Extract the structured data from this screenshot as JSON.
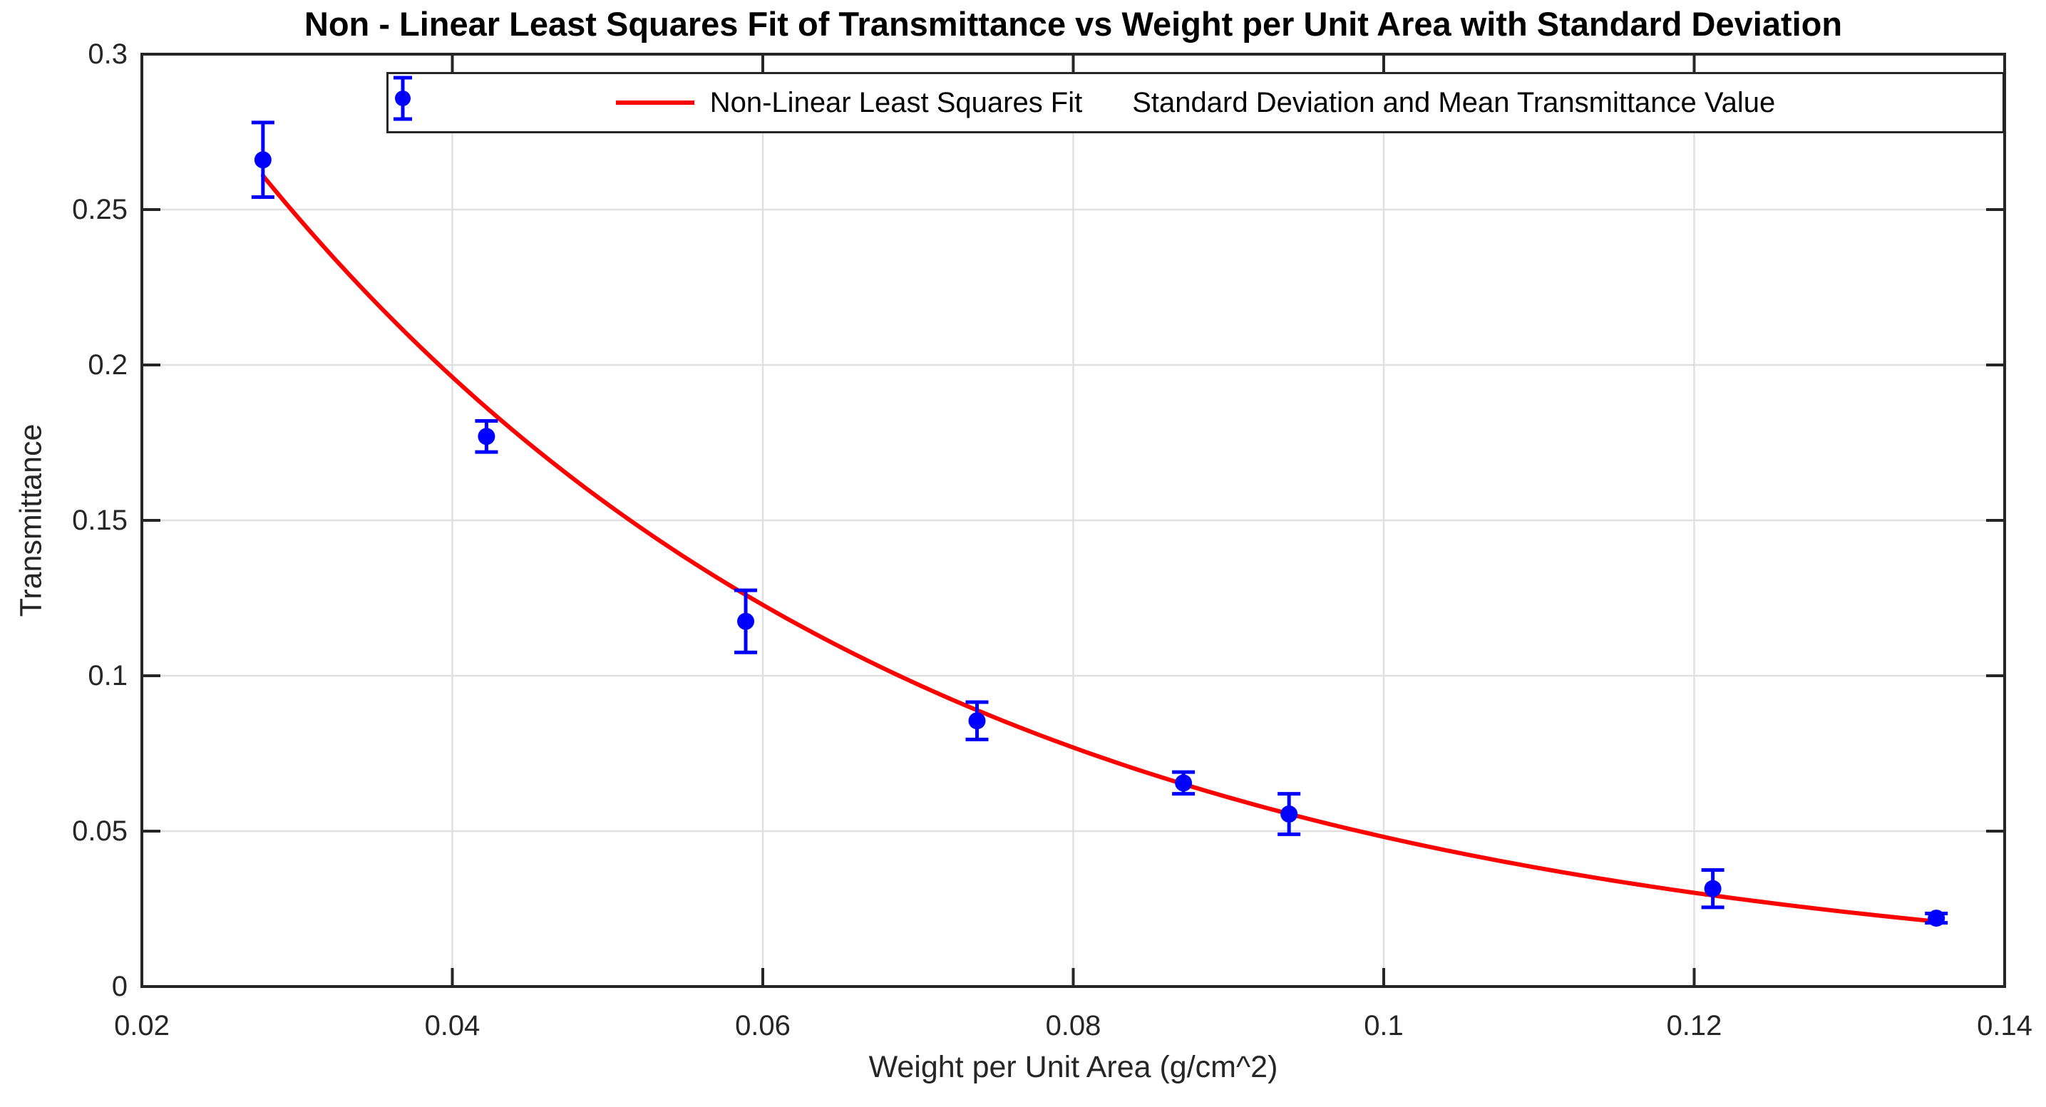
{
  "chart_data": {
    "type": "line+errorbar-scatter",
    "title": "Non - Linear Least Squares Fit of Transmittance vs Weight per Unit Area with Standard Deviation",
    "xlabel": "Weight per Unit Area (g/cm^2)",
    "ylabel": "Transmittance",
    "xlim": [
      0.02,
      0.14
    ],
    "ylim": [
      0,
      0.3
    ],
    "grid": true,
    "legend_position": "north",
    "xticks": [
      {
        "v": 0.02,
        "label": "0.02"
      },
      {
        "v": 0.04,
        "label": "0.04"
      },
      {
        "v": 0.06,
        "label": "0.06"
      },
      {
        "v": 0.08,
        "label": "0.08"
      },
      {
        "v": 0.1,
        "label": "0.1"
      },
      {
        "v": 0.12,
        "label": "0.12"
      },
      {
        "v": 0.14,
        "label": "0.14"
      }
    ],
    "yticks": [
      {
        "v": 0,
        "label": "0"
      },
      {
        "v": 0.05,
        "label": "0.05"
      },
      {
        "v": 0.1,
        "label": "0.1"
      },
      {
        "v": 0.15,
        "label": "0.15"
      },
      {
        "v": 0.2,
        "label": "0.2"
      },
      {
        "v": 0.25,
        "label": "0.25"
      },
      {
        "v": 0.3,
        "label": "0.3"
      }
    ],
    "colors": {
      "fit_line": "#FF0000",
      "data": "#0000FF",
      "axis": "#262626",
      "grid": "#E0E0E0",
      "legend_border": "#262626",
      "title": "#000000"
    },
    "series": [
      {
        "name": "Non-Linear Least Squares Fit",
        "type": "line",
        "color": "#FF0000",
        "fit_params": {
          "a": 0.5,
          "b": 23.4
        },
        "x_range": [
          0.0278,
          0.1356
        ]
      },
      {
        "name": "Standard Deviation and Mean Transmittance Value",
        "type": "errorbar",
        "color": "#0000FF",
        "x": [
          0.0278,
          0.0422,
          0.0589,
          0.0738,
          0.0871,
          0.0939,
          0.1212,
          0.1356
        ],
        "y": [
          0.266,
          0.177,
          0.1175,
          0.0855,
          0.0655,
          0.0555,
          0.0315,
          0.022
        ],
        "yerr": [
          0.012,
          0.005,
          0.01,
          0.006,
          0.0035,
          0.0065,
          0.006,
          0.0015
        ]
      }
    ]
  }
}
